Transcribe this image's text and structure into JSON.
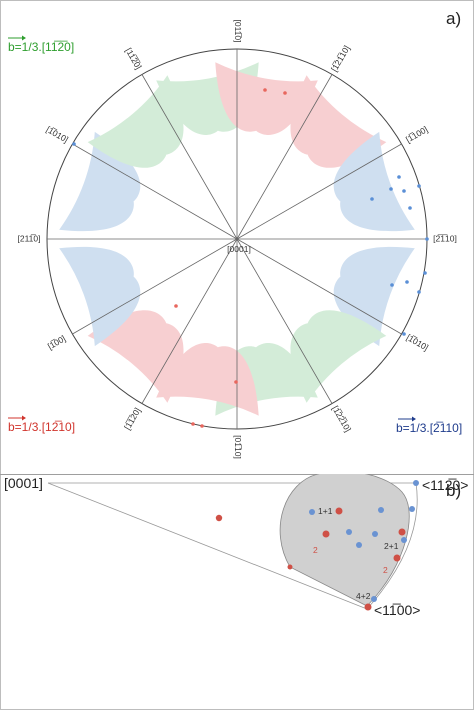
{
  "panel_a": {
    "label": "a)",
    "center_label": "[0001]",
    "burgers": {
      "green": {
        "text": "b=1/3.[11̅2̅0]",
        "color": "#2e9e2e"
      },
      "red": {
        "text": "b=1/3.[12̅10]",
        "color": "#d0342c"
      },
      "blue": {
        "text": "b=1/3.[2̅110]",
        "color": "#1f3c8c"
      }
    },
    "spoke_labels": [
      "[011̅0]",
      "[1̅21̅10]",
      "[1̅100]",
      "[2̅1̅10]",
      "[1̅010]",
      "[1̅22̅10]",
      "[01̅10]",
      "[1̅1̅20]",
      "[1̅00]",
      "[211̅0]",
      "[1̅010]",
      "[11̅2̅0]"
    ],
    "colors": {
      "green_lobe": "#d3ecd8",
      "red_lobe": "#f7cfd1",
      "blue_lobe": "#cfdff0",
      "red_dot": "#e8675e",
      "blue_dot": "#5a8fd6"
    }
  },
  "panel_b": {
    "label": "b)",
    "corner_0001": "[0001]",
    "corner_1120": "<112̅0>",
    "corner_1100": "<11̅00>",
    "pair_labels": [
      "1+1",
      "2",
      "2+1",
      "2",
      "4+2"
    ],
    "colors": {
      "region": "#d0d0d0",
      "red_dot": "#cf5046",
      "blue_dot": "#6a93d2"
    }
  }
}
